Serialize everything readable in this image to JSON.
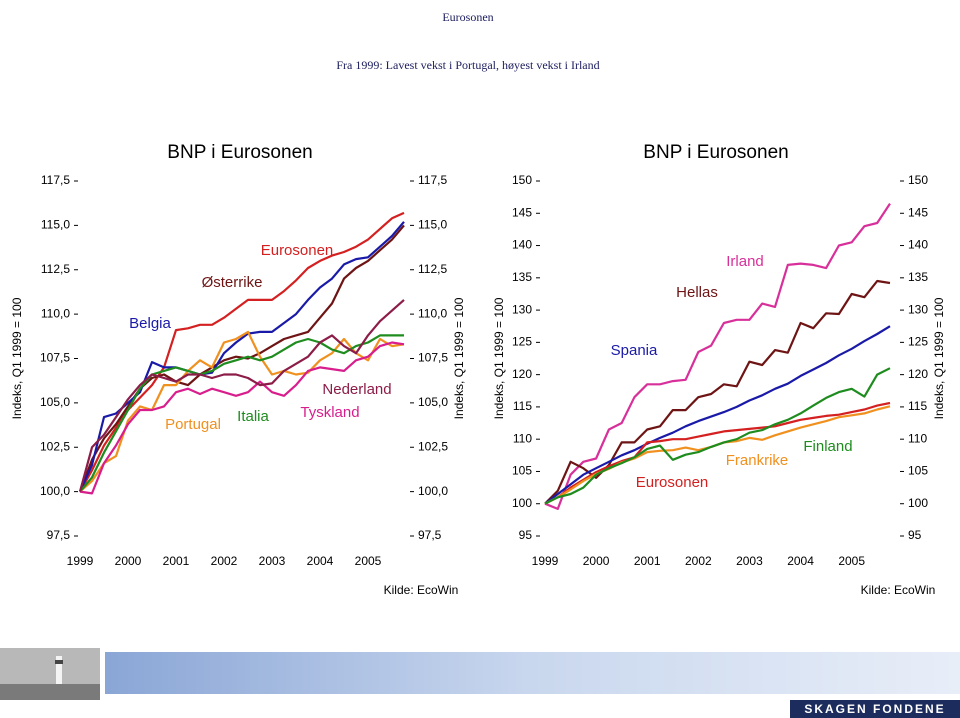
{
  "header": {
    "title": "Eurosonen",
    "subtitle": "Fra 1999: Lavest vekst i Portugal, høyest vekst i Irland"
  },
  "footer": {
    "logo": "SKAGEN FONDENE"
  },
  "chart_data": [
    {
      "type": "line",
      "title": "BNP i Eurosonen",
      "ylabel": "Indeks, Q1 1999 = 100",
      "source": "Kilde: EcoWin",
      "x": [
        1999,
        1999.25,
        1999.5,
        1999.75,
        2000,
        2000.25,
        2000.5,
        2000.75,
        2001,
        2001.25,
        2001.5,
        2001.75,
        2002,
        2002.25,
        2002.5,
        2002.75,
        2003,
        2003.25,
        2003.5,
        2003.75,
        2004,
        2004.25,
        2004.5,
        2004.75,
        2005,
        2005.25,
        2005.5,
        2005.75
      ],
      "xlim": [
        1999,
        2005.75
      ],
      "xticks": [
        1999,
        2000,
        2001,
        2002,
        2003,
        2004,
        2005
      ],
      "ylim": [
        97.5,
        117.5
      ],
      "yticks": [
        {
          "value": 117.5,
          "label": "117,5"
        },
        {
          "value": 115,
          "label": "115,0"
        },
        {
          "value": 112.5,
          "label": "112,5"
        },
        {
          "value": 110,
          "label": "110,0"
        },
        {
          "value": 107.5,
          "label": "107,5"
        },
        {
          "value": 105,
          "label": "105,0"
        },
        {
          "value": 102.5,
          "label": "102,5"
        },
        {
          "value": 100,
          "label": "100,0"
        },
        {
          "value": 97.5,
          "label": "97,5"
        }
      ],
      "series": [
        {
          "name": "Eurosonen",
          "color": "#d42020",
          "values": [
            100,
            101.2,
            102.6,
            103.6,
            104.6,
            105.3,
            106.0,
            107.0,
            109.1,
            109.2,
            109.4,
            109.4,
            109.8,
            110.3,
            110.8,
            110.8,
            110.8,
            111.3,
            111.9,
            112.6,
            113.0,
            113.3,
            113.5,
            113.8,
            114.2,
            114.8,
            115.4,
            115.7
          ]
        },
        {
          "name": "Østerrike",
          "color": "#6e1414",
          "values": [
            100,
            101.8,
            103.0,
            103.8,
            104.8,
            105.8,
            106.4,
            106.6,
            106.2,
            106.0,
            106.6,
            107.0,
            107.4,
            107.6,
            107.5,
            107.8,
            108.2,
            108.6,
            108.8,
            109.0,
            109.8,
            110.6,
            112.0,
            112.6,
            113.0,
            113.6,
            114.2,
            115.0
          ]
        },
        {
          "name": "Belgia",
          "color": "#1a1aa8",
          "values": [
            100,
            101.5,
            104.2,
            104.4,
            105.0,
            105.6,
            107.3,
            107.0,
            107.0,
            106.8,
            106.6,
            106.7,
            107.8,
            108.4,
            108.9,
            109.0,
            109.0,
            109.5,
            110.0,
            110.8,
            111.5,
            112.0,
            112.8,
            113.1,
            113.2,
            113.8,
            114.4,
            115.2
          ]
        },
        {
          "name": "Portugal",
          "color": "#f0901e",
          "values": [
            100,
            100.6,
            101.6,
            102.0,
            104.0,
            104.8,
            104.6,
            106.0,
            106.0,
            106.8,
            107.4,
            107.0,
            108.4,
            108.6,
            109.0,
            107.6,
            106.6,
            106.8,
            106.6,
            106.7,
            107.4,
            107.8,
            108.6,
            107.8,
            107.4,
            108.6,
            108.2,
            108.3
          ]
        },
        {
          "name": "Italia",
          "color": "#1e8c1e",
          "values": [
            100,
            100.8,
            102.2,
            103.4,
            104.6,
            105.8,
            106.6,
            106.8,
            107.0,
            106.8,
            106.6,
            106.8,
            107.2,
            107.4,
            107.6,
            107.4,
            107.6,
            108.0,
            108.4,
            108.6,
            108.4,
            108.0,
            107.8,
            108.2,
            108.4,
            108.8,
            108.8,
            108.8
          ]
        },
        {
          "name": "Tyskland",
          "color": "#d81e8c",
          "values": [
            100,
            99.9,
            101.6,
            102.6,
            103.8,
            104.6,
            104.6,
            104.8,
            105.6,
            105.8,
            105.5,
            105.8,
            105.6,
            105.4,
            105.6,
            106.2,
            105.6,
            105.4,
            106.0,
            106.8,
            107.0,
            106.9,
            106.8,
            107.4,
            107.6,
            108.2,
            108.4,
            108.3
          ]
        },
        {
          "name": "Nederland",
          "color": "#8c1c48",
          "values": [
            100,
            102.5,
            103.2,
            104.2,
            105.2,
            106.0,
            106.6,
            106.4,
            106.2,
            106.6,
            106.6,
            106.4,
            106.6,
            106.6,
            106.4,
            106.0,
            106.1,
            106.8,
            107.2,
            107.6,
            108.4,
            108.8,
            108.2,
            107.8,
            108.8,
            109.6,
            110.2,
            110.8
          ]
        }
      ]
    },
    {
      "type": "line",
      "title": "BNP i Eurosonen",
      "ylabel": "Indeks, Q1 1999 = 100",
      "source": "Kilde: EcoWin",
      "x": [
        1999,
        1999.25,
        1999.5,
        1999.75,
        2000,
        2000.25,
        2000.5,
        2000.75,
        2001,
        2001.25,
        2001.5,
        2001.75,
        2002,
        2002.25,
        2002.5,
        2002.75,
        2003,
        2003.25,
        2003.5,
        2003.75,
        2004,
        2004.25,
        2004.5,
        2004.75,
        2005,
        2005.25,
        2005.5,
        2005.75
      ],
      "xlim": [
        1999,
        2005.75
      ],
      "xticks": [
        1999,
        2000,
        2001,
        2002,
        2003,
        2004,
        2005
      ],
      "ylim": [
        95,
        150
      ],
      "yticks": [
        150,
        145,
        140,
        135,
        130,
        125,
        120,
        115,
        110,
        105,
        100,
        95
      ],
      "series": [
        {
          "name": "Irland",
          "color": "#d8309a",
          "values": [
            100,
            99.2,
            104.5,
            106.5,
            107,
            111.5,
            112.5,
            116.5,
            118.5,
            118.5,
            119,
            119.2,
            123.5,
            124.5,
            128,
            128.5,
            128.5,
            131,
            130.5,
            137,
            137.2,
            137,
            136.5,
            140,
            140.5,
            143,
            143.5,
            146.5
          ]
        },
        {
          "name": "Hellas",
          "color": "#6e1414",
          "values": [
            100,
            102,
            106.5,
            105.5,
            104,
            106,
            109.5,
            109.5,
            111.5,
            112,
            114.5,
            114.5,
            116.5,
            117,
            118.5,
            118.2,
            122,
            121.5,
            123.8,
            123.4,
            128,
            127.2,
            129.5,
            129.4,
            132.5,
            132,
            134.5,
            134.2
          ]
        },
        {
          "name": "Spania",
          "color": "#1a1aa8",
          "values": [
            100,
            101.5,
            103,
            104.5,
            105.5,
            106.5,
            107.5,
            108.3,
            109.3,
            110.2,
            111,
            112,
            112.8,
            113.5,
            114.2,
            115,
            116,
            116.8,
            117.8,
            118.6,
            119.8,
            120.8,
            121.8,
            123,
            124,
            125.2,
            126.3,
            127.5
          ]
        },
        {
          "name": "Eurosonen",
          "color": "#d42020",
          "values": [
            100,
            101,
            102.5,
            103.7,
            104.9,
            105.8,
            106.6,
            107.2,
            109.5,
            109.7,
            110,
            110,
            110.4,
            110.8,
            111.2,
            111.4,
            111.6,
            111.8,
            112,
            112.5,
            113,
            113.3,
            113.6,
            113.8,
            114.2,
            114.6,
            115.2,
            115.6
          ]
        },
        {
          "name": "Frankrike",
          "color": "#f0901e",
          "values": [
            100,
            101,
            102.2,
            103.5,
            104.6,
            105.4,
            106.4,
            107,
            108,
            108.2,
            108.3,
            108.7,
            108.3,
            108.8,
            109.5,
            109.7,
            110.2,
            109.9,
            110.6,
            111.2,
            111.8,
            112.3,
            112.8,
            113.4,
            113.7,
            114,
            114.6,
            115.1
          ]
        },
        {
          "name": "Finland",
          "color": "#1e8c1e",
          "values": [
            100,
            101,
            101.5,
            102.5,
            104.5,
            105.5,
            106.3,
            107.2,
            108.5,
            109,
            106.8,
            107.6,
            108,
            108.8,
            109.5,
            110,
            111,
            111.4,
            112.3,
            113,
            114,
            115.2,
            116.4,
            117.3,
            117.8,
            116.6,
            120,
            121
          ]
        }
      ]
    }
  ]
}
